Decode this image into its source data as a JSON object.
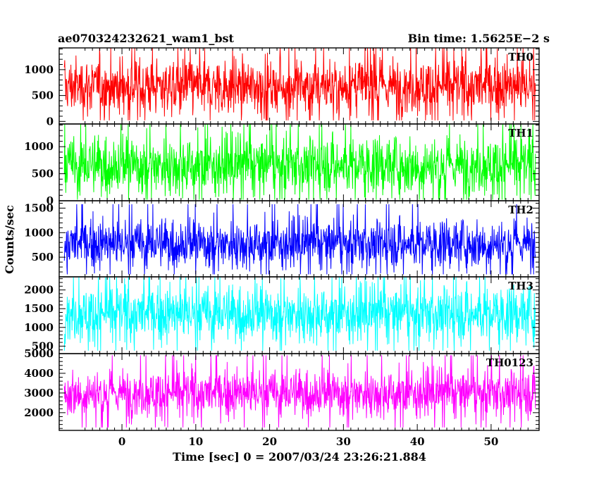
{
  "header": {
    "title": "ae070324232621_wam1_bst",
    "bin_time": "Bin time: 1.5625E−2 s"
  },
  "chart_data": {
    "type": "line",
    "title": "ae070324232621_wam1_bst",
    "subtitle": "Bin time: 1.5625E−2 s",
    "xlabel": "Time [sec] 0 = 2007/03/24 23:26:21.884",
    "ylabel": "Counts/sec",
    "xlim": [
      -8.5,
      56.5
    ],
    "x_ticks": [
      0,
      10,
      20,
      30,
      40,
      50
    ],
    "x_tick_labels": [
      "0",
      "10",
      "20",
      "30",
      "40",
      "50"
    ],
    "x_data_range": [
      -7.8,
      56.0
    ],
    "bin_time_s": 0.015625,
    "grid": false,
    "legend": "none",
    "series": [
      {
        "name": "TH0",
        "color": "#ff0000",
        "ylim": [
          -50,
          1420
        ],
        "y_ticks": [
          0,
          500,
          1000
        ],
        "y_tick_labels": [
          "0",
          "500",
          "1000"
        ],
        "mean": 680,
        "typical_low": 150,
        "typical_high": 1250,
        "min": 20,
        "max": 1420
      },
      {
        "name": "TH1",
        "color": "#00ff00",
        "ylim": [
          0,
          1420
        ],
        "y_ticks": [
          0,
          500,
          1000
        ],
        "y_tick_labels": [
          "0",
          "500",
          "1000"
        ],
        "mean": 660,
        "typical_low": 120,
        "typical_high": 1200,
        "min": 20,
        "max": 1420
      },
      {
        "name": "TH2",
        "color": "#0000ff",
        "ylim": [
          100,
          1650
        ],
        "y_ticks": [
          500,
          1000,
          1500
        ],
        "y_tick_labels": [
          "500",
          "1000",
          "1500"
        ],
        "mean": 780,
        "typical_low": 300,
        "typical_high": 1300,
        "min": 150,
        "max": 1650
      },
      {
        "name": "TH3",
        "color": "#00ffff",
        "ylim": [
          300,
          2350
        ],
        "y_ticks": [
          500,
          1000,
          1500,
          2000
        ],
        "y_tick_labels": [
          "500",
          "1000",
          "1500",
          "2000"
        ],
        "mean": 1370,
        "typical_low": 600,
        "typical_high": 2100,
        "min": 380,
        "max": 2350
      },
      {
        "name": "TH0123",
        "color": "#ff00ff",
        "ylim": [
          1100,
          5000
        ],
        "y_ticks": [
          2000,
          3000,
          4000,
          5000
        ],
        "y_tick_labels": [
          "2000",
          "3000",
          "4000",
          "5000"
        ],
        "mean": 3000,
        "typical_low": 1800,
        "typical_high": 4200,
        "min": 1250,
        "max": 5000
      }
    ]
  }
}
